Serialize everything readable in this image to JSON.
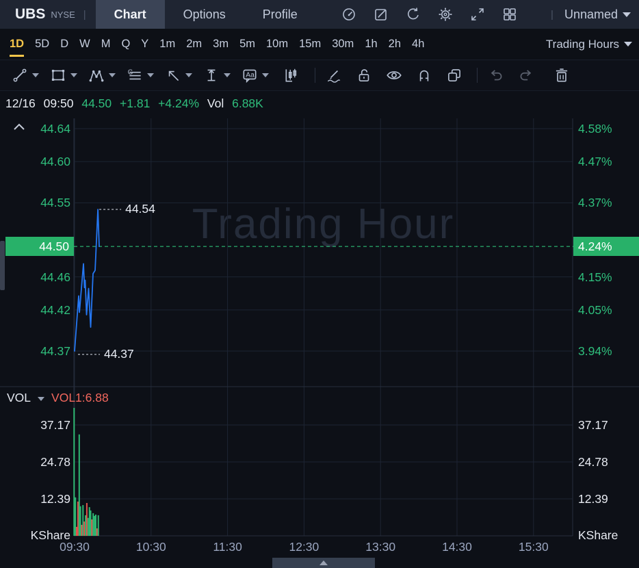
{
  "header": {
    "symbol": "UBS",
    "exchange": "NYSE",
    "divider": "|",
    "tabs": [
      {
        "label": "Chart",
        "active": true
      },
      {
        "label": "Options",
        "active": false
      },
      {
        "label": "Profile",
        "active": false
      }
    ],
    "icons": [
      "gauge-icon",
      "edit-icon",
      "refresh-icon",
      "settings-icon",
      "fullscreen-icon",
      "layout-grid-icon"
    ],
    "layout_menu": {
      "label": "Unnamed"
    }
  },
  "timeframes": {
    "items": [
      "1D",
      "5D",
      "D",
      "W",
      "M",
      "Q",
      "Y",
      "1m",
      "2m",
      "3m",
      "5m",
      "10m",
      "15m",
      "30m",
      "1h",
      "2h",
      "4h"
    ],
    "active": "1D",
    "session": "Trading Hours"
  },
  "drawing_toolbar": {
    "dropdown_tools": [
      "trend-line-icon",
      "shape-rectangle-icon",
      "wave-pattern-icon",
      "gann-lines-icon",
      "arrow-icon",
      "measure-icon",
      "text-label-icon"
    ],
    "buttons": [
      "candlestick-icon",
      "draw-continuous-icon",
      "lock-open-icon",
      "visibility-icon",
      "magnet-icon",
      "clone-icon",
      "undo-icon",
      "redo-icon",
      "delete-icon"
    ]
  },
  "quote_bar": {
    "date": "12/16",
    "time": "09:50",
    "last": "44.50",
    "change": "+1.81",
    "change_pct": "+4.24%",
    "vol_label": "Vol",
    "volume": "6.88K"
  },
  "chart_data": {
    "type": "line",
    "watermark": "Trading Hour",
    "pane_price": {
      "y_range": [
        44.3268,
        44.6525
      ],
      "left_ticks": [
        {
          "v": 44.64,
          "label": "44.64"
        },
        {
          "v": 44.6,
          "label": "44.60"
        },
        {
          "v": 44.55,
          "label": "44.55"
        },
        {
          "v": 44.46,
          "label": "44.46"
        },
        {
          "v": 44.42,
          "label": "44.42"
        },
        {
          "v": 44.37,
          "label": "44.37"
        }
      ],
      "right_ticks": [
        {
          "v": 44.64,
          "label": "4.58%"
        },
        {
          "v": 44.6,
          "label": "4.47%"
        },
        {
          "v": 44.55,
          "label": "4.37%"
        },
        {
          "v": 44.46,
          "label": "4.15%"
        },
        {
          "v": 44.42,
          "label": "4.05%"
        },
        {
          "v": 44.37,
          "label": "3.94%"
        }
      ],
      "last_price": {
        "v": 44.497,
        "left_label": "44.50",
        "right_label": "4.24%"
      },
      "series_t_price": [
        [
          0,
          44.37
        ],
        [
          3.2,
          44.437
        ],
        [
          3.8,
          44.417
        ],
        [
          7.0,
          44.476
        ],
        [
          7.8,
          44.447
        ],
        [
          8.3,
          44.456
        ],
        [
          9.4,
          44.414
        ],
        [
          11.0,
          44.446
        ],
        [
          12.6,
          44.399
        ],
        [
          14.5,
          44.464
        ],
        [
          16.1,
          44.468
        ],
        [
          18.3,
          44.542
        ],
        [
          19.3,
          44.497
        ]
      ],
      "annotations": [
        {
          "label": "44.54",
          "v": 44.542,
          "t": 18.3
        },
        {
          "label": "44.37",
          "v": 44.366,
          "t": 1.6
        }
      ]
    },
    "pane_volume": {
      "label": "VOL",
      "indicator": "VOL1:6.88",
      "y_range": [
        0,
        50
      ],
      "ticks": [
        {
          "v": 37.17,
          "label": "37.17"
        },
        {
          "v": 24.78,
          "label": "24.78"
        },
        {
          "v": 12.39,
          "label": "12.39"
        }
      ],
      "unit_label": "KShare",
      "bars": [
        {
          "t": 0,
          "v": 42.9,
          "c": "g"
        },
        {
          "t": 1,
          "v": 12.9,
          "c": "g"
        },
        {
          "t": 2,
          "v": 3.0,
          "c": "r"
        },
        {
          "t": 3,
          "v": 11.5,
          "c": "r"
        },
        {
          "t": 4,
          "v": 34.0,
          "c": "g"
        },
        {
          "t": 5,
          "v": 9.9,
          "c": "g"
        },
        {
          "t": 6,
          "v": 3.7,
          "c": "r"
        },
        {
          "t": 7,
          "v": 10.3,
          "c": "g"
        },
        {
          "t": 8,
          "v": 4.8,
          "c": "r"
        },
        {
          "t": 9,
          "v": 6.9,
          "c": "g"
        },
        {
          "t": 10,
          "v": 11.0,
          "c": "r"
        },
        {
          "t": 11,
          "v": 6.0,
          "c": "g"
        },
        {
          "t": 12,
          "v": 9.6,
          "c": "g"
        },
        {
          "t": 13,
          "v": 8.5,
          "c": "g"
        },
        {
          "t": 14,
          "v": 5.5,
          "c": "r"
        },
        {
          "t": 15,
          "v": 7.6,
          "c": "g"
        },
        {
          "t": 16,
          "v": 6.7,
          "c": "g"
        },
        {
          "t": 17,
          "v": 7.1,
          "c": "g"
        },
        {
          "t": 18,
          "v": 2.5,
          "c": "r"
        },
        {
          "t": 19,
          "v": 6.9,
          "c": "g"
        }
      ]
    },
    "x_axis": {
      "labels": [
        "09:30",
        "10:30",
        "11:30",
        "12:30",
        "13:30",
        "14:30",
        "15:30"
      ],
      "minutes_per_div": 60
    },
    "colors": {
      "line": "#2577f2",
      "up": "#2eb873",
      "down": "#e2544c",
      "last_line": "#31d181",
      "badge": "#28b169"
    }
  }
}
